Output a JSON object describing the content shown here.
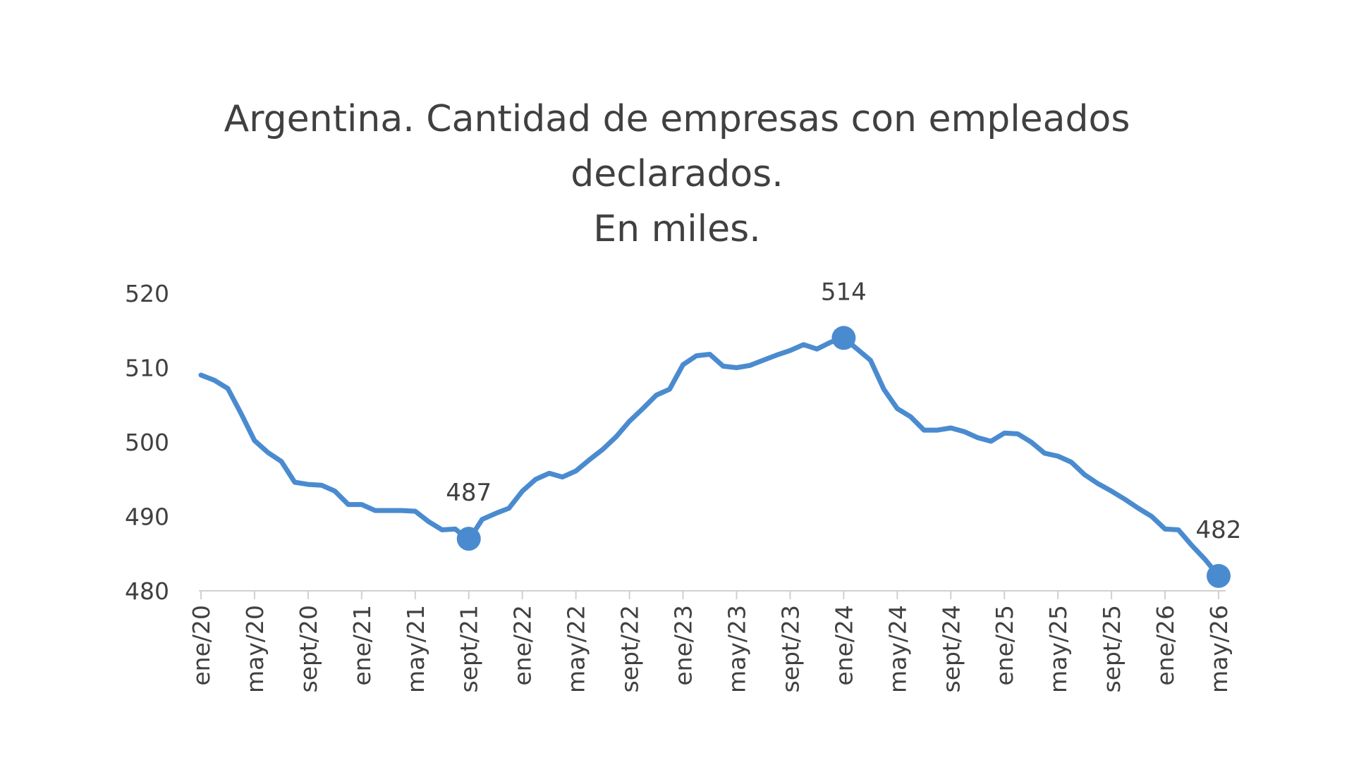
{
  "chart_data": {
    "type": "line",
    "title_lines": [
      "Argentina. Cantidad de empresas con empleados",
      "declarados.",
      "En miles."
    ],
    "xlabel": "",
    "ylabel": "",
    "ylim": [
      480,
      520
    ],
    "yticks": [
      "480",
      "490",
      "500",
      "510",
      "520"
    ],
    "x_tick_labels": [
      "ene/20",
      "may/20",
      "sept/20",
      "ene/21",
      "may/21",
      "sept/21",
      "ene/22",
      "may/22",
      "sept/22",
      "ene/23",
      "may/23",
      "sept/23",
      "ene/24",
      "may/24",
      "sept/24",
      "ene/25",
      "may/25",
      "sept/25",
      "ene/26",
      "may/26"
    ],
    "x": [
      "ene/20",
      "feb/20",
      "mar/20",
      "abr/20",
      "may/20",
      "jun/20",
      "jul/20",
      "ago/20",
      "sept/20",
      "oct/20",
      "nov/20",
      "dic/20",
      "ene/21",
      "feb/21",
      "mar/21",
      "abr/21",
      "may/21",
      "jun/21",
      "jul/21",
      "ago/21",
      "sept/21",
      "oct/21",
      "nov/21",
      "dic/21",
      "ene/22",
      "feb/22",
      "mar/22",
      "abr/22",
      "may/22",
      "jun/22",
      "jul/22",
      "ago/22",
      "sept/22",
      "oct/22",
      "nov/22",
      "dic/22",
      "ene/23",
      "feb/23",
      "mar/23",
      "abr/23",
      "may/23",
      "jun/23",
      "jul/23",
      "ago/23",
      "sept/23",
      "oct/23",
      "nov/23",
      "dic/23",
      "ene/24",
      "feb/24",
      "mar/24",
      "abr/24",
      "may/24",
      "jun/24",
      "jul/24",
      "ago/24",
      "sept/24",
      "oct/24",
      "nov/24",
      "dic/24",
      "ene/25",
      "feb/25",
      "mar/25",
      "abr/25",
      "may/25",
      "jun/25",
      "jul/25",
      "ago/25",
      "sept/25",
      "oct/25",
      "nov/25",
      "dic/25",
      "ene/26",
      "feb/26",
      "mar/26",
      "abr/26",
      "may/26"
    ],
    "values": [
      509.0,
      508.3,
      507.2,
      503.8,
      500.2,
      498.6,
      497.4,
      494.6,
      494.3,
      494.2,
      493.4,
      491.6,
      491.6,
      490.8,
      490.8,
      490.8,
      490.7,
      489.3,
      488.2,
      488.3,
      486.8,
      489.6,
      490.4,
      491.1,
      493.4,
      495.0,
      495.8,
      495.3,
      496.1,
      497.6,
      499.0,
      500.7,
      502.8,
      504.5,
      506.3,
      507.1,
      510.4,
      511.6,
      511.8,
      510.2,
      510.0,
      510.3,
      511.0,
      511.7,
      512.3,
      513.1,
      512.5,
      513.4,
      514.0,
      512.5,
      511.0,
      507.1,
      504.5,
      503.4,
      501.6,
      501.6,
      501.9,
      501.4,
      500.6,
      500.1,
      501.2,
      501.1,
      500.0,
      498.5,
      498.1,
      497.3,
      495.6,
      494.4,
      493.4,
      492.3,
      491.1,
      490.0,
      488.3,
      488.2,
      486.1,
      484.2,
      482.0
    ],
    "highlighted_points": [
      {
        "x": "sept/21",
        "value": 487,
        "label": "487"
      },
      {
        "x": "ene/24",
        "value": 514,
        "label": "514"
      },
      {
        "x": "may/26",
        "value": 482,
        "label": "482"
      }
    ],
    "grid": false,
    "legend": "none",
    "line_color": "#4a8bd0",
    "marker_color": "#4a8bd0",
    "text_color": "#404040",
    "axis_color": "#d0d0d0"
  }
}
